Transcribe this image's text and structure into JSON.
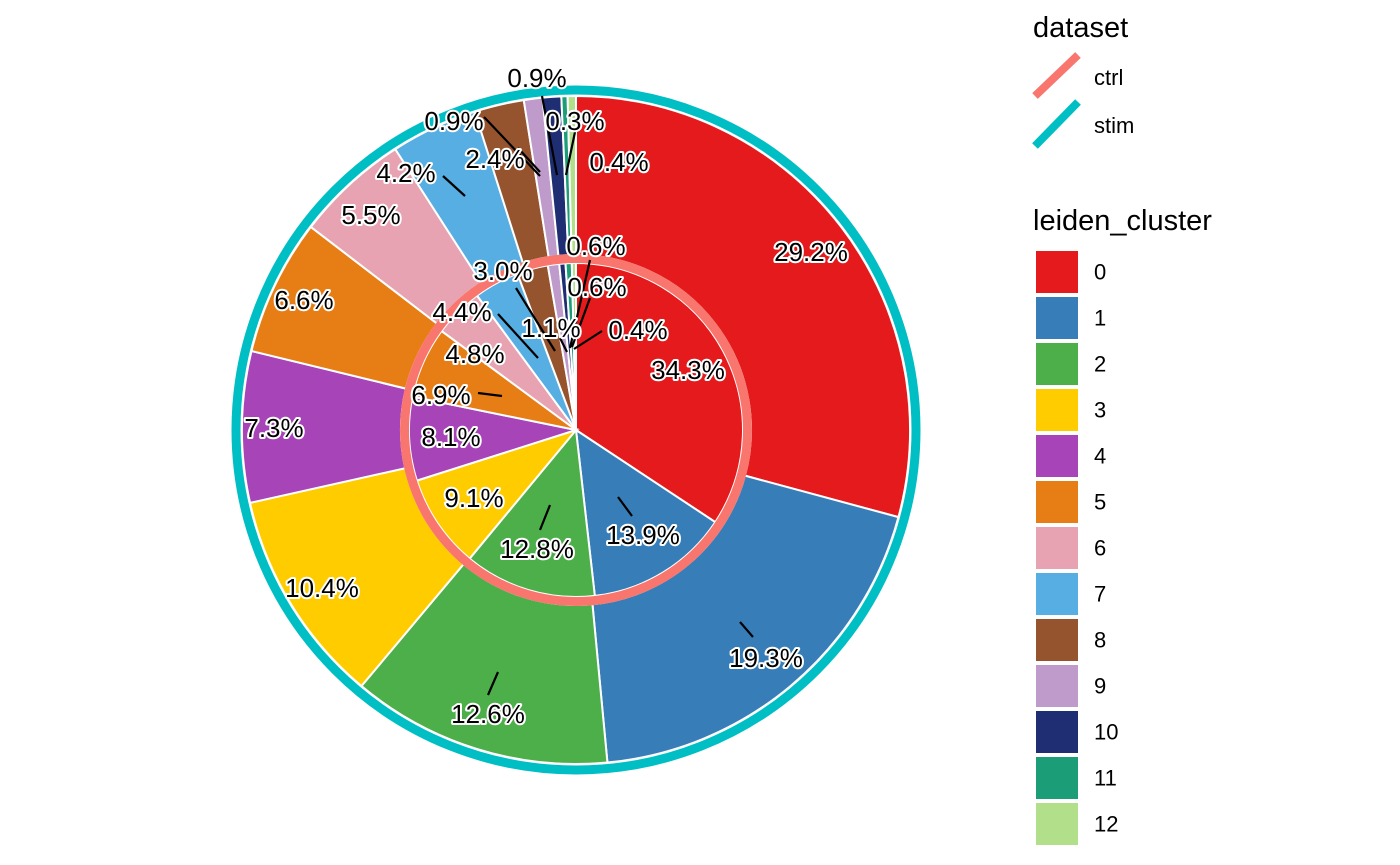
{
  "chart_data": {
    "type": "pie",
    "variant": "nested-donut",
    "clusters": [
      "0",
      "1",
      "2",
      "3",
      "4",
      "5",
      "6",
      "7",
      "8",
      "9",
      "10",
      "11",
      "12"
    ],
    "colors": [
      "#E41A1C",
      "#377EB8",
      "#4DAF4A",
      "#FFCC00",
      "#A745B8",
      "#E67E15",
      "#E8A3B3",
      "#57AEE2",
      "#96542E",
      "#BF9BCB",
      "#1F2E73",
      "#1B9E77",
      "#B2DF8A"
    ],
    "series": [
      {
        "name": "ctrl",
        "ring": "inner",
        "border_color": "#F8766D",
        "values": [
          34.3,
          13.9,
          12.8,
          9.1,
          8.1,
          6.9,
          4.8,
          4.4,
          3.0,
          1.1,
          0.6,
          0.6,
          0.4
        ],
        "labels": [
          "34.3%",
          "13.9%",
          "12.8%",
          "9.1%",
          "8.1%",
          "6.9%",
          "4.8%",
          "4.4%",
          "3.0%",
          "1.1%",
          "0.6%",
          "0.6%",
          "0.4%"
        ]
      },
      {
        "name": "stim",
        "ring": "outer",
        "border_color": "#00BFC4",
        "values": [
          29.2,
          19.3,
          12.6,
          10.4,
          7.3,
          6.6,
          5.5,
          4.2,
          2.4,
          0.9,
          0.9,
          0.3,
          0.4
        ],
        "labels": [
          "29.2%",
          "19.3%",
          "12.6%",
          "10.4%",
          "7.3%",
          "6.6%",
          "5.5%",
          "4.2%",
          "2.4%",
          "0.9%",
          "0.9%",
          "0.3%",
          "0.4%"
        ]
      }
    ],
    "legend": {
      "dataset": {
        "title": "dataset",
        "items": [
          "ctrl",
          "stim"
        ]
      },
      "leiden_cluster": {
        "title": "leiden_cluster",
        "items": [
          "0",
          "1",
          "2",
          "3",
          "4",
          "5",
          "6",
          "7",
          "8",
          "9",
          "10",
          "11",
          "12"
        ]
      },
      "placement": "right"
    }
  }
}
